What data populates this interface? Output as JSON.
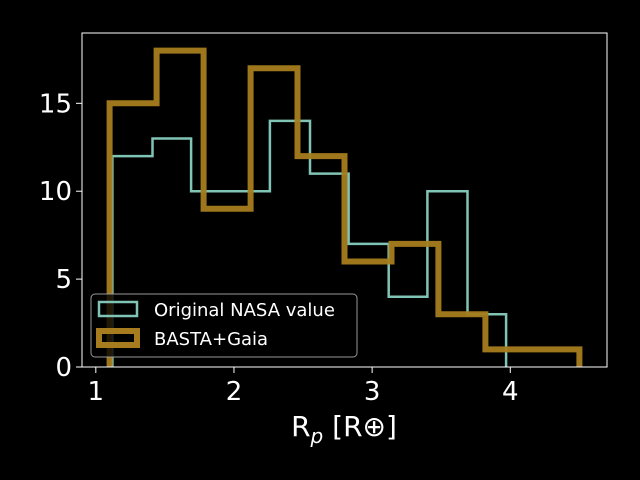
{
  "chart_data": {
    "type": "histogram",
    "title": "",
    "xlabel_main": "R",
    "xlabel_sub": "p",
    "xlabel_unit": " [R⊕]",
    "ylabel": "",
    "xlim": [
      0.9,
      4.7
    ],
    "ylim": [
      0,
      19
    ],
    "xticks": [
      1,
      2,
      3,
      4
    ],
    "yticks": [
      0,
      5,
      10,
      15
    ],
    "grid": false,
    "legend_position": "lower-left",
    "series": [
      {
        "name": "Original NASA value",
        "color": "#7fc4b4",
        "style": "step-thin",
        "bin_edges": [
          1.12,
          1.41,
          1.69,
          1.98,
          2.26,
          2.55,
          2.83,
          3.12,
          3.4,
          3.69,
          3.97
        ],
        "counts": [
          12,
          13,
          10,
          10,
          14,
          11,
          7,
          4,
          10,
          3
        ]
      },
      {
        "name": "BASTA+Gaia",
        "color": "#a67c1e",
        "style": "step-thick",
        "bin_edges": [
          1.1,
          1.44,
          1.78,
          2.12,
          2.46,
          2.8,
          3.14,
          3.48,
          3.82,
          4.16,
          4.5
        ],
        "counts": [
          15,
          18,
          9,
          17,
          12,
          6,
          7,
          3,
          1,
          1
        ]
      }
    ]
  }
}
